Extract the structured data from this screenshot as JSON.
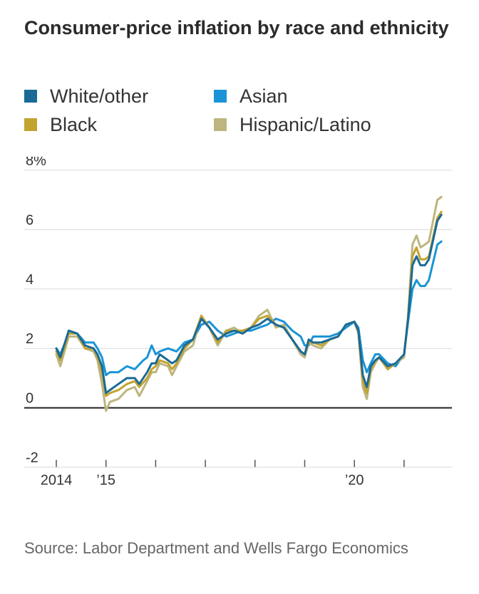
{
  "title": "Consumer-price inflation by race and ethnicity",
  "source": "Source: Labor Department and Wells Fargo Economics",
  "legend": [
    {
      "label": "White/other",
      "color": "#1a6a97"
    },
    {
      "label": "Asian",
      "color": "#1a94d6"
    },
    {
      "label": "Black",
      "color": "#c3a32f"
    },
    {
      "label": "Hispanic/Latino",
      "color": "#bdb57e"
    }
  ],
  "chart_data": {
    "type": "line",
    "ylim": [
      -2,
      8
    ],
    "xlim": [
      2014.0,
      2021.92
    ],
    "y_ticks": [
      {
        "value": 8,
        "label": "8%"
      },
      {
        "value": 6,
        "label": "6"
      },
      {
        "value": 4,
        "label": "4"
      },
      {
        "value": 2,
        "label": "2"
      },
      {
        "value": 0,
        "label": "0"
      },
      {
        "value": -2,
        "label": "-2"
      }
    ],
    "x_ticks": [
      2014,
      2015,
      2016,
      2017,
      2018,
      2019,
      2020,
      2021
    ],
    "x_labels": [
      {
        "value": 2014,
        "label": "2014"
      },
      {
        "value": 2015,
        "label": "’15"
      },
      {
        "value": 2020,
        "label": "’20"
      }
    ],
    "grid": true,
    "legend_position": "top",
    "series": [
      {
        "name": "Asian",
        "color": "#1a94d6",
        "points": [
          [
            2014.0,
            2.0
          ],
          [
            2014.08,
            1.8
          ],
          [
            2014.25,
            2.5
          ],
          [
            2014.42,
            2.5
          ],
          [
            2014.58,
            2.2
          ],
          [
            2014.75,
            2.2
          ],
          [
            2014.83,
            2.0
          ],
          [
            2014.92,
            1.7
          ],
          [
            2015.0,
            1.1
          ],
          [
            2015.08,
            1.2
          ],
          [
            2015.25,
            1.2
          ],
          [
            2015.42,
            1.4
          ],
          [
            2015.58,
            1.3
          ],
          [
            2015.75,
            1.6
          ],
          [
            2015.83,
            1.7
          ],
          [
            2015.92,
            2.1
          ],
          [
            2016.0,
            1.8
          ],
          [
            2016.08,
            1.9
          ],
          [
            2016.25,
            2.0
          ],
          [
            2016.42,
            1.9
          ],
          [
            2016.58,
            2.2
          ],
          [
            2016.75,
            2.3
          ],
          [
            2016.92,
            2.8
          ],
          [
            2017.08,
            2.9
          ],
          [
            2017.25,
            2.6
          ],
          [
            2017.42,
            2.4
          ],
          [
            2017.58,
            2.5
          ],
          [
            2017.75,
            2.6
          ],
          [
            2017.92,
            2.6
          ],
          [
            2018.08,
            2.7
          ],
          [
            2018.25,
            2.8
          ],
          [
            2018.42,
            3.0
          ],
          [
            2018.58,
            2.9
          ],
          [
            2018.75,
            2.6
          ],
          [
            2018.92,
            2.4
          ],
          [
            2019.0,
            2.1
          ],
          [
            2019.08,
            2.1
          ],
          [
            2019.17,
            2.4
          ],
          [
            2019.33,
            2.4
          ],
          [
            2019.5,
            2.4
          ],
          [
            2019.67,
            2.5
          ],
          [
            2019.83,
            2.7
          ],
          [
            2020.0,
            2.9
          ],
          [
            2020.08,
            2.7
          ],
          [
            2020.17,
            1.6
          ],
          [
            2020.25,
            1.2
          ],
          [
            2020.33,
            1.5
          ],
          [
            2020.42,
            1.8
          ],
          [
            2020.5,
            1.8
          ],
          [
            2020.67,
            1.5
          ],
          [
            2020.83,
            1.4
          ],
          [
            2021.0,
            1.8
          ],
          [
            2021.08,
            2.9
          ],
          [
            2021.17,
            4.0
          ],
          [
            2021.25,
            4.3
          ],
          [
            2021.33,
            4.1
          ],
          [
            2021.42,
            4.1
          ],
          [
            2021.5,
            4.3
          ],
          [
            2021.67,
            5.5
          ],
          [
            2021.75,
            5.6
          ]
        ]
      },
      {
        "name": "Hispanic/Latino",
        "color": "#bdb57e",
        "points": [
          [
            2014.0,
            1.8
          ],
          [
            2014.08,
            1.4
          ],
          [
            2014.25,
            2.4
          ],
          [
            2014.42,
            2.4
          ],
          [
            2014.58,
            2.0
          ],
          [
            2014.75,
            1.9
          ],
          [
            2014.83,
            1.6
          ],
          [
            2014.92,
            0.8
          ],
          [
            2015.0,
            -0.1
          ],
          [
            2015.08,
            0.2
          ],
          [
            2015.25,
            0.3
          ],
          [
            2015.42,
            0.6
          ],
          [
            2015.58,
            0.7
          ],
          [
            2015.67,
            0.4
          ],
          [
            2015.83,
            0.9
          ],
          [
            2015.92,
            1.2
          ],
          [
            2016.0,
            1.2
          ],
          [
            2016.08,
            1.5
          ],
          [
            2016.25,
            1.4
          ],
          [
            2016.33,
            1.1
          ],
          [
            2016.42,
            1.4
          ],
          [
            2016.58,
            1.9
          ],
          [
            2016.75,
            2.1
          ],
          [
            2016.92,
            3.1
          ],
          [
            2017.08,
            2.7
          ],
          [
            2017.25,
            2.1
          ],
          [
            2017.42,
            2.6
          ],
          [
            2017.58,
            2.7
          ],
          [
            2017.75,
            2.5
          ],
          [
            2017.92,
            2.7
          ],
          [
            2018.08,
            3.1
          ],
          [
            2018.25,
            3.3
          ],
          [
            2018.42,
            2.7
          ],
          [
            2018.58,
            2.8
          ],
          [
            2018.75,
            2.3
          ],
          [
            2018.92,
            1.8
          ],
          [
            2019.0,
            1.7
          ],
          [
            2019.08,
            2.2
          ],
          [
            2019.17,
            2.1
          ],
          [
            2019.33,
            2.0
          ],
          [
            2019.5,
            2.3
          ],
          [
            2019.67,
            2.4
          ],
          [
            2019.83,
            2.8
          ],
          [
            2020.0,
            2.9
          ],
          [
            2020.08,
            2.5
          ],
          [
            2020.17,
            0.7
          ],
          [
            2020.25,
            0.3
          ],
          [
            2020.33,
            1.2
          ],
          [
            2020.42,
            1.5
          ],
          [
            2020.5,
            1.7
          ],
          [
            2020.67,
            1.3
          ],
          [
            2020.83,
            1.5
          ],
          [
            2021.0,
            1.7
          ],
          [
            2021.08,
            3.1
          ],
          [
            2021.17,
            5.5
          ],
          [
            2021.25,
            5.8
          ],
          [
            2021.33,
            5.4
          ],
          [
            2021.42,
            5.5
          ],
          [
            2021.5,
            5.6
          ],
          [
            2021.67,
            7.0
          ],
          [
            2021.75,
            7.1
          ]
        ]
      },
      {
        "name": "Black",
        "color": "#c3a32f",
        "points": [
          [
            2014.0,
            1.9
          ],
          [
            2014.08,
            1.6
          ],
          [
            2014.25,
            2.5
          ],
          [
            2014.42,
            2.5
          ],
          [
            2014.58,
            2.0
          ],
          [
            2014.75,
            2.0
          ],
          [
            2014.83,
            1.7
          ],
          [
            2014.92,
            1.2
          ],
          [
            2015.0,
            0.4
          ],
          [
            2015.08,
            0.5
          ],
          [
            2015.25,
            0.6
          ],
          [
            2015.42,
            0.8
          ],
          [
            2015.58,
            0.9
          ],
          [
            2015.67,
            0.7
          ],
          [
            2015.83,
            1.0
          ],
          [
            2015.92,
            1.3
          ],
          [
            2016.0,
            1.4
          ],
          [
            2016.08,
            1.6
          ],
          [
            2016.25,
            1.5
          ],
          [
            2016.33,
            1.3
          ],
          [
            2016.42,
            1.5
          ],
          [
            2016.58,
            2.0
          ],
          [
            2016.75,
            2.3
          ],
          [
            2016.92,
            3.1
          ],
          [
            2017.08,
            2.7
          ],
          [
            2017.25,
            2.2
          ],
          [
            2017.42,
            2.6
          ],
          [
            2017.58,
            2.6
          ],
          [
            2017.75,
            2.6
          ],
          [
            2017.92,
            2.7
          ],
          [
            2018.08,
            3.0
          ],
          [
            2018.25,
            3.1
          ],
          [
            2018.42,
            2.8
          ],
          [
            2018.58,
            2.7
          ],
          [
            2018.75,
            2.3
          ],
          [
            2018.92,
            1.9
          ],
          [
            2019.0,
            1.8
          ],
          [
            2019.08,
            2.2
          ],
          [
            2019.17,
            2.2
          ],
          [
            2019.33,
            2.1
          ],
          [
            2019.5,
            2.3
          ],
          [
            2019.67,
            2.4
          ],
          [
            2019.83,
            2.8
          ],
          [
            2020.0,
            2.9
          ],
          [
            2020.08,
            2.6
          ],
          [
            2020.17,
            0.9
          ],
          [
            2020.25,
            0.5
          ],
          [
            2020.33,
            1.3
          ],
          [
            2020.42,
            1.6
          ],
          [
            2020.5,
            1.7
          ],
          [
            2020.67,
            1.3
          ],
          [
            2020.83,
            1.5
          ],
          [
            2021.0,
            1.8
          ],
          [
            2021.08,
            3.0
          ],
          [
            2021.17,
            5.1
          ],
          [
            2021.25,
            5.4
          ],
          [
            2021.33,
            5.0
          ],
          [
            2021.42,
            5.0
          ],
          [
            2021.5,
            5.1
          ],
          [
            2021.67,
            6.4
          ],
          [
            2021.75,
            6.6
          ]
        ]
      },
      {
        "name": "White/other",
        "color": "#1a6a97",
        "points": [
          [
            2014.0,
            2.0
          ],
          [
            2014.08,
            1.7
          ],
          [
            2014.25,
            2.6
          ],
          [
            2014.42,
            2.5
          ],
          [
            2014.58,
            2.1
          ],
          [
            2014.75,
            2.0
          ],
          [
            2014.83,
            1.8
          ],
          [
            2014.92,
            1.4
          ],
          [
            2015.0,
            0.5
          ],
          [
            2015.08,
            0.6
          ],
          [
            2015.25,
            0.8
          ],
          [
            2015.42,
            1.0
          ],
          [
            2015.58,
            1.0
          ],
          [
            2015.67,
            0.8
          ],
          [
            2015.83,
            1.2
          ],
          [
            2015.92,
            1.5
          ],
          [
            2016.0,
            1.5
          ],
          [
            2016.08,
            1.8
          ],
          [
            2016.25,
            1.6
          ],
          [
            2016.33,
            1.5
          ],
          [
            2016.42,
            1.6
          ],
          [
            2016.58,
            2.1
          ],
          [
            2016.75,
            2.3
          ],
          [
            2016.92,
            3.0
          ],
          [
            2017.08,
            2.7
          ],
          [
            2017.25,
            2.3
          ],
          [
            2017.42,
            2.5
          ],
          [
            2017.58,
            2.6
          ],
          [
            2017.75,
            2.5
          ],
          [
            2017.92,
            2.7
          ],
          [
            2018.08,
            2.8
          ],
          [
            2018.25,
            3.0
          ],
          [
            2018.42,
            2.8
          ],
          [
            2018.58,
            2.7
          ],
          [
            2018.75,
            2.3
          ],
          [
            2018.92,
            1.9
          ],
          [
            2019.0,
            1.8
          ],
          [
            2019.08,
            2.3
          ],
          [
            2019.17,
            2.2
          ],
          [
            2019.33,
            2.2
          ],
          [
            2019.5,
            2.3
          ],
          [
            2019.67,
            2.4
          ],
          [
            2019.83,
            2.8
          ],
          [
            2020.0,
            2.9
          ],
          [
            2020.08,
            2.6
          ],
          [
            2020.17,
            1.1
          ],
          [
            2020.25,
            0.7
          ],
          [
            2020.33,
            1.4
          ],
          [
            2020.42,
            1.6
          ],
          [
            2020.5,
            1.7
          ],
          [
            2020.67,
            1.4
          ],
          [
            2020.83,
            1.5
          ],
          [
            2021.0,
            1.8
          ],
          [
            2021.08,
            3.0
          ],
          [
            2021.17,
            4.8
          ],
          [
            2021.25,
            5.1
          ],
          [
            2021.33,
            4.8
          ],
          [
            2021.42,
            4.8
          ],
          [
            2021.5,
            5.0
          ],
          [
            2021.67,
            6.3
          ],
          [
            2021.75,
            6.5
          ]
        ]
      }
    ]
  }
}
